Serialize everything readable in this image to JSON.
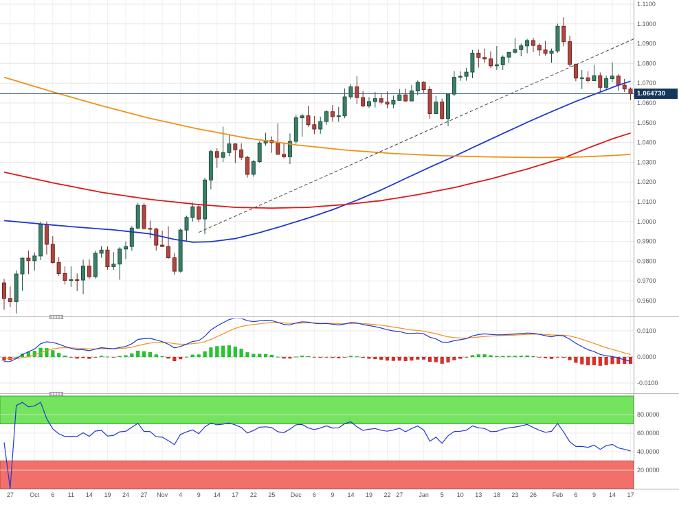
{
  "chart": {
    "colors": {
      "background": "#ffffff",
      "grid": "#e7e7e7",
      "grid_vertical": "#efefef",
      "zero_line": "#b0b0b0",
      "axis_line": "#a0a0a0",
      "axis_text": "#555555",
      "candle_up_fill": "#3a8068",
      "candle_up_border": "#1f5040",
      "candle_down_fill": "#b24540",
      "candle_down_border": "#6e2823",
      "trendline": "#404040",
      "price_line": "#33607f",
      "badge_bg": "#14365a",
      "badge_text": "#ffffff",
      "hist_up": "#1fca28",
      "hist_down": "#e42a22",
      "macd_line": "#2038d0",
      "macd_signal": "#f09018",
      "rsi_line": "#2038d0",
      "band_overbought_fill": "#74e35e",
      "band_overbought_border": "#3aa43a",
      "band_oversold_fill": "#f2706a",
      "band_oversold_border": "#c4403c",
      "separator": "#b6b6b6"
    }
  },
  "chart_data": {
    "type": "candlestick",
    "x_labels": [
      {
        "i": 1,
        "t": "27"
      },
      {
        "i": 5,
        "t": "Oct"
      },
      {
        "i": 8,
        "t": "6"
      },
      {
        "i": 11,
        "t": "11"
      },
      {
        "i": 14,
        "t": "14"
      },
      {
        "i": 17,
        "t": "19"
      },
      {
        "i": 20,
        "t": "24"
      },
      {
        "i": 23,
        "t": "27"
      },
      {
        "i": 26,
        "t": "Nov"
      },
      {
        "i": 29,
        "t": "4"
      },
      {
        "i": 32,
        "t": "9"
      },
      {
        "i": 35,
        "t": "14"
      },
      {
        "i": 38,
        "t": "17"
      },
      {
        "i": 41,
        "t": "22"
      },
      {
        "i": 44,
        "t": "25"
      },
      {
        "i": 48,
        "t": "Dec"
      },
      {
        "i": 51,
        "t": "6"
      },
      {
        "i": 54,
        "t": "9"
      },
      {
        "i": 57,
        "t": "14"
      },
      {
        "i": 60,
        "t": "19"
      },
      {
        "i": 63,
        "t": "22"
      },
      {
        "i": 65,
        "t": "27"
      },
      {
        "i": 69,
        "t": "Jan"
      },
      {
        "i": 72,
        "t": "5"
      },
      {
        "i": 75,
        "t": "10"
      },
      {
        "i": 78,
        "t": "13"
      },
      {
        "i": 81,
        "t": "18"
      },
      {
        "i": 84,
        "t": "23"
      },
      {
        "i": 87,
        "t": "26"
      },
      {
        "i": 91,
        "t": "Feb"
      },
      {
        "i": 94,
        "t": "6"
      },
      {
        "i": 97,
        "t": "9"
      },
      {
        "i": 100,
        "t": "14"
      },
      {
        "i": 103,
        "t": "17"
      }
    ],
    "price_axis": {
      "ticks": [
        1.11,
        1.1,
        1.09,
        1.08,
        1.07,
        1.06,
        1.05,
        1.04,
        1.03,
        1.02,
        1.01,
        1.0,
        0.99,
        0.98,
        0.97,
        0.96
      ],
      "last_price": 1.06473,
      "last_price_label": "1.064730"
    },
    "candles_ohlc": [
      [
        0.969,
        0.971,
        0.9554,
        0.9611
      ],
      [
        0.9611,
        0.9672,
        0.9568,
        0.9595
      ],
      [
        0.9595,
        0.9753,
        0.9535,
        0.9735
      ],
      [
        0.9735,
        0.9818,
        0.965,
        0.9815
      ],
      [
        0.9815,
        0.9853,
        0.9734,
        0.9802
      ],
      [
        0.9802,
        0.9844,
        0.9752,
        0.9826
      ],
      [
        0.9826,
        0.9999,
        0.9805,
        0.9985
      ],
      [
        0.9985,
        1.0,
        0.9834,
        0.9885
      ],
      [
        0.9885,
        0.9926,
        0.9788,
        0.9793
      ],
      [
        0.9793,
        0.982,
        0.9726,
        0.9737
      ],
      [
        0.9737,
        0.9774,
        0.9682,
        0.9702
      ],
      [
        0.9702,
        0.9773,
        0.967,
        0.9706
      ],
      [
        0.9706,
        0.9738,
        0.9649,
        0.9704
      ],
      [
        0.9704,
        0.9807,
        0.9633,
        0.9775
      ],
      [
        0.9775,
        0.9808,
        0.971,
        0.9721
      ],
      [
        0.9721,
        0.9852,
        0.9712,
        0.984
      ],
      [
        0.984,
        0.9876,
        0.9817,
        0.9856
      ],
      [
        0.9856,
        0.9874,
        0.9757,
        0.9772
      ],
      [
        0.9772,
        0.9846,
        0.9756,
        0.9785
      ],
      [
        0.9785,
        0.987,
        0.9706,
        0.9861
      ],
      [
        0.9861,
        0.99,
        0.9809,
        0.9874
      ],
      [
        0.9874,
        0.9977,
        0.9852,
        0.9967
      ],
      [
        0.9967,
        1.0094,
        0.9961,
        1.0082
      ],
      [
        1.0082,
        1.0094,
        0.9959,
        0.9965
      ],
      [
        0.9965,
        1.0005,
        0.9916,
        0.9963
      ],
      [
        0.9963,
        0.9968,
        0.9853,
        0.9881
      ],
      [
        0.9881,
        0.9954,
        0.9871,
        0.9874
      ],
      [
        0.9874,
        0.9976,
        0.9811,
        0.9817
      ],
      [
        0.9817,
        0.9841,
        0.9731,
        0.9749
      ],
      [
        0.9749,
        0.9965,
        0.9742,
        0.9957
      ],
      [
        0.9957,
        1.003,
        0.9904,
        1.0021
      ],
      [
        1.0021,
        1.0096,
        1.0,
        1.0075
      ],
      [
        1.0075,
        1.009,
        0.9998,
        1.0013
      ],
      [
        1.0013,
        1.0222,
        0.9936,
        1.021
      ],
      [
        1.021,
        1.0364,
        1.0163,
        1.0354
      ],
      [
        1.0354,
        1.037,
        1.0272,
        1.0325
      ],
      [
        1.0325,
        1.048,
        1.0301,
        1.0349
      ],
      [
        1.0349,
        1.044,
        1.0331,
        1.0393
      ],
      [
        1.0393,
        1.0396,
        1.0296,
        1.0363
      ],
      [
        1.0363,
        1.0396,
        1.0311,
        1.0325
      ],
      [
        1.0325,
        1.0333,
        1.0223,
        1.0239
      ],
      [
        1.0239,
        1.0311,
        1.0227,
        1.0303
      ],
      [
        1.0303,
        1.0406,
        1.0297,
        1.0397
      ],
      [
        1.0397,
        1.0449,
        1.0383,
        1.041
      ],
      [
        1.041,
        1.0431,
        1.0348,
        1.0399
      ],
      [
        1.0399,
        1.0497,
        1.0339,
        1.034
      ],
      [
        1.034,
        1.0395,
        1.032,
        1.0328
      ],
      [
        1.0328,
        1.0446,
        1.0291,
        1.0406
      ],
      [
        1.0406,
        1.054,
        1.0394,
        1.0525
      ],
      [
        1.0525,
        1.0546,
        1.0429,
        1.0535
      ],
      [
        1.0535,
        1.0586,
        1.0479,
        1.049
      ],
      [
        1.049,
        1.0534,
        1.0443,
        1.0468
      ],
      [
        1.0468,
        1.0531,
        1.0444,
        1.0506
      ],
      [
        1.0506,
        1.0564,
        1.049,
        1.0556
      ],
      [
        1.0556,
        1.0589,
        1.0506,
        1.0531
      ],
      [
        1.0531,
        1.058,
        1.0505,
        1.0535
      ],
      [
        1.0535,
        1.0674,
        1.0523,
        1.0631
      ],
      [
        1.0631,
        1.0696,
        1.0618,
        1.0682
      ],
      [
        1.0682,
        1.0736,
        1.0595,
        1.0627
      ],
      [
        1.0627,
        1.0661,
        1.0579,
        1.0585
      ],
      [
        1.0585,
        1.0629,
        1.0575,
        1.0607
      ],
      [
        1.0607,
        1.0655,
        1.0577,
        1.0622
      ],
      [
        1.0622,
        1.0646,
        1.0592,
        1.0604
      ],
      [
        1.0604,
        1.0658,
        1.0574,
        1.0594
      ],
      [
        1.0594,
        1.0637,
        1.0574,
        1.0613
      ],
      [
        1.0613,
        1.0671,
        1.0611,
        1.0641
      ],
      [
        1.0641,
        1.0673,
        1.0605,
        1.061
      ],
      [
        1.061,
        1.0691,
        1.0608,
        1.0661
      ],
      [
        1.0661,
        1.0714,
        1.0639,
        1.0705
      ],
      [
        1.0705,
        1.071,
        1.0651,
        1.0668
      ],
      [
        1.0668,
        1.0684,
        1.052,
        1.0546
      ],
      [
        1.0546,
        1.0636,
        1.0543,
        1.0605
      ],
      [
        1.0605,
        1.0622,
        1.0516,
        1.0521
      ],
      [
        1.0521,
        1.0649,
        1.0483,
        1.0645
      ],
      [
        1.0645,
        1.0761,
        1.0635,
        1.073
      ],
      [
        1.073,
        1.076,
        1.0712,
        1.0735
      ],
      [
        1.0735,
        1.0777,
        1.0713,
        1.0756
      ],
      [
        1.0756,
        1.0868,
        1.0725,
        1.0852
      ],
      [
        1.0852,
        1.087,
        1.0779,
        1.083
      ],
      [
        1.083,
        1.0875,
        1.0803,
        1.0823
      ],
      [
        1.0823,
        1.0861,
        1.0776,
        1.0788
      ],
      [
        1.0788,
        1.0888,
        1.0767,
        1.0793
      ],
      [
        1.0793,
        1.0841,
        1.0767,
        1.0832
      ],
      [
        1.0832,
        1.0859,
        1.0802,
        1.0856
      ],
      [
        1.0856,
        1.0928,
        1.0849,
        1.087
      ],
      [
        1.087,
        1.09,
        1.0836,
        1.0889
      ],
      [
        1.0889,
        1.0924,
        1.0851,
        1.0916
      ],
      [
        1.0916,
        1.093,
        1.0857,
        1.0891
      ],
      [
        1.0891,
        1.0901,
        1.0838,
        1.0868
      ],
      [
        1.0868,
        1.0914,
        1.0839,
        1.0851
      ],
      [
        1.0851,
        1.0875,
        1.0803,
        1.0863
      ],
      [
        1.0863,
        1.1001,
        1.0853,
        1.0988
      ],
      [
        1.0988,
        1.1033,
        1.0886,
        1.091
      ],
      [
        1.091,
        1.0941,
        1.0783,
        1.0795
      ],
      [
        1.0795,
        1.0799,
        1.071,
        1.0726
      ],
      [
        1.0726,
        1.0767,
        1.067,
        1.0727
      ],
      [
        1.0727,
        1.076,
        1.0703,
        1.0713
      ],
      [
        1.0713,
        1.0792,
        1.0712,
        1.0738
      ],
      [
        1.0738,
        1.0754,
        1.0657,
        1.0679
      ],
      [
        1.0679,
        1.0738,
        1.067,
        1.0723
      ],
      [
        1.0723,
        1.0805,
        1.0706,
        1.0736
      ],
      [
        1.0736,
        1.0745,
        1.0662,
        1.069
      ],
      [
        1.069,
        1.0722,
        1.0656,
        1.0671
      ],
      [
        1.0671,
        1.0678,
        1.0614,
        1.0647
      ]
    ],
    "moving_averages": [
      {
        "name": "sma-50",
        "color": "#2038d0",
        "points": [
          [
            0,
            1.0005
          ],
          [
            6,
            0.9988
          ],
          [
            12,
            0.9972
          ],
          [
            18,
            0.9958
          ],
          [
            24,
            0.9938
          ],
          [
            28,
            0.991
          ],
          [
            31,
            0.9896
          ],
          [
            34,
            0.9898
          ],
          [
            38,
            0.9914
          ],
          [
            42,
            0.9944
          ],
          [
            46,
            0.998
          ],
          [
            50,
            1.0018
          ],
          [
            54,
            1.006
          ],
          [
            58,
            1.0108
          ],
          [
            62,
            1.016
          ],
          [
            66,
            1.0218
          ],
          [
            70,
            1.0275
          ],
          [
            74,
            1.033
          ],
          [
            78,
            1.0388
          ],
          [
            82,
            1.0445
          ],
          [
            86,
            1.0502
          ],
          [
            90,
            1.0556
          ],
          [
            94,
            1.0608
          ],
          [
            98,
            1.0655
          ],
          [
            101,
            1.069
          ],
          [
            103,
            1.071
          ]
        ]
      },
      {
        "name": "sma-100",
        "color": "#e01818",
        "points": [
          [
            0,
            1.025
          ],
          [
            8,
            1.0196
          ],
          [
            16,
            1.0148
          ],
          [
            24,
            1.0112
          ],
          [
            32,
            1.0086
          ],
          [
            38,
            1.0072
          ],
          [
            44,
            1.0068
          ],
          [
            50,
            1.0072
          ],
          [
            56,
            1.0086
          ],
          [
            62,
            1.0106
          ],
          [
            68,
            1.0136
          ],
          [
            74,
            1.0172
          ],
          [
            80,
            1.0216
          ],
          [
            86,
            1.0266
          ],
          [
            92,
            1.0322
          ],
          [
            96,
            1.0372
          ],
          [
            100,
            1.0418
          ],
          [
            103,
            1.0448
          ]
        ]
      },
      {
        "name": "sma-200",
        "color": "#f09018",
        "points": [
          [
            0,
            1.073
          ],
          [
            8,
            1.0656
          ],
          [
            16,
            1.0586
          ],
          [
            24,
            1.0522
          ],
          [
            32,
            1.0468
          ],
          [
            40,
            1.0422
          ],
          [
            48,
            1.0388
          ],
          [
            56,
            1.0362
          ],
          [
            64,
            1.0344
          ],
          [
            72,
            1.0333
          ],
          [
            80,
            1.0327
          ],
          [
            88,
            1.0324
          ],
          [
            94,
            1.0326
          ],
          [
            100,
            1.0334
          ],
          [
            103,
            1.034
          ]
        ]
      }
    ],
    "trendline": {
      "i1": 32,
      "p1": 0.9945,
      "i2": 104.4,
      "p2": 1.0936,
      "style": "dashed",
      "color": "#404040"
    },
    "macd": {
      "fast": 12,
      "slow": 26,
      "signal": 9,
      "ticks": [
        0.01,
        0,
        -0.01
      ]
    },
    "rsi": {
      "period": 14,
      "overbought": 70,
      "oversold": 30,
      "ticks": [
        80,
        60,
        40,
        20
      ]
    }
  }
}
